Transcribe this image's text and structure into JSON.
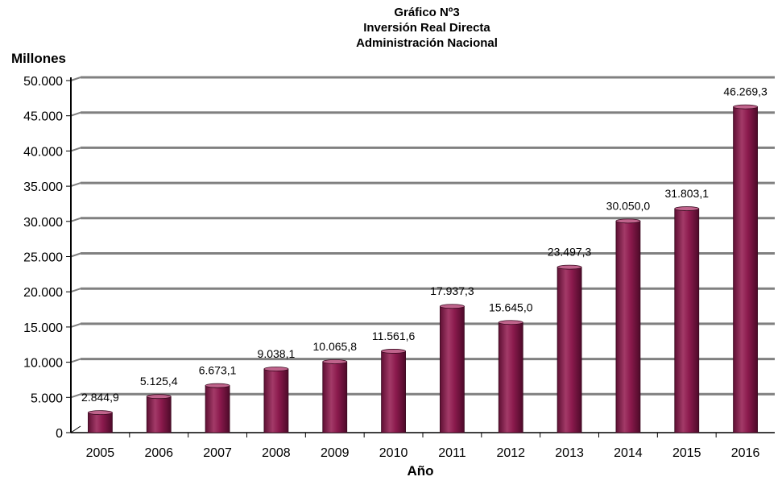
{
  "chart_data": {
    "type": "bar",
    "title_lines": [
      "Gráfico Nº3",
      "Inversión Real Directa",
      "Administración Nacional"
    ],
    "ylabel": "Millones",
    "xlabel": "Año",
    "categories": [
      "2005",
      "2006",
      "2007",
      "2008",
      "2009",
      "2010",
      "2011",
      "2012",
      "2013",
      "2014",
      "2015",
      "2016"
    ],
    "values": [
      2844.9,
      5125.4,
      6673.1,
      9038.1,
      10065.8,
      11561.6,
      17937.3,
      15645.0,
      23497.3,
      30050.0,
      31803.1,
      46269.3
    ],
    "value_labels": [
      "2.844,9",
      "5.125,4",
      "6.673,1",
      "9.038,1",
      "10.065,8",
      "11.561,6",
      "17.937,3",
      "15.645,0",
      "23.497,3",
      "30.050,0",
      "31.803,1",
      "46.269,3"
    ],
    "ylim": [
      0,
      50000
    ],
    "yticks": [
      0,
      5000,
      10000,
      15000,
      20000,
      25000,
      30000,
      35000,
      40000,
      45000,
      50000
    ],
    "ytick_labels": [
      "0",
      "5.000",
      "10.000",
      "15.000",
      "20.000",
      "25.000",
      "30.000",
      "35.000",
      "40.000",
      "45.000",
      "50.000"
    ],
    "grid": true,
    "legend": "none",
    "bar_color": "#8b1a4d",
    "bar_highlight": "#c0648c",
    "grid_color": "#808080"
  }
}
